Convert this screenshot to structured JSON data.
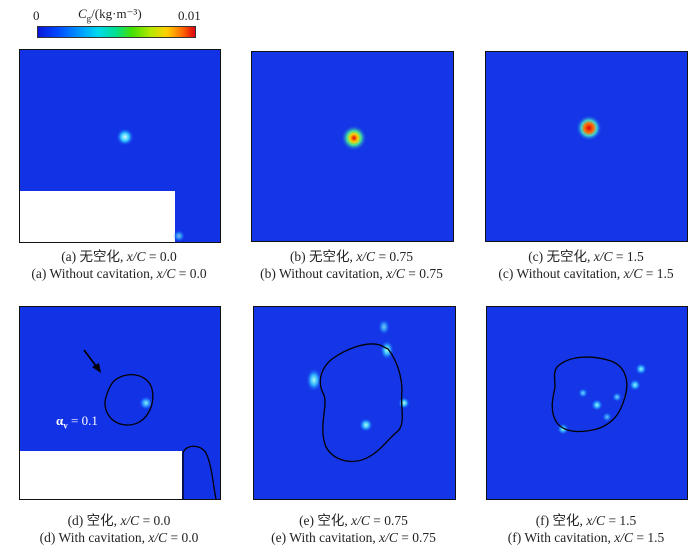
{
  "colorbar": {
    "min": "0",
    "max": "0.01",
    "title": "C",
    "title_sub": "g",
    "title_unit": "/(kg·m⁻³)",
    "colors": [
      "#0a18d8",
      "#0046ff",
      "#0090ff",
      "#00d8f0",
      "#00e08a",
      "#44e000",
      "#b8e800",
      "#ffd000",
      "#ff6a00",
      "#e00010"
    ]
  },
  "panels": [
    {
      "zh": "(a) 无空化,",
      "en": "(a) Without cavitation,",
      "xc": "x/C",
      "val": "= 0.0"
    },
    {
      "zh": "(b) 无空化,",
      "en": "(b) Without cavitation,",
      "xc": "x/C",
      "val": "= 0.75"
    },
    {
      "zh": "(c) 无空化,",
      "en": "(c) Without cavitation,",
      "xc": "x/C",
      "val": "= 1.5"
    },
    {
      "zh": "(d) 空化,",
      "en": "(d) With cavitation,",
      "xc": "x/C",
      "val": "= 0.0"
    },
    {
      "zh": "(e) 空化,",
      "en": "(e) With cavitation,",
      "xc": "x/C",
      "val": "= 0.75"
    },
    {
      "zh": "(f) 空化,",
      "en": "(f) With cavitation,",
      "xc": "x/C",
      "val": "= 1.5"
    }
  ],
  "annotation": {
    "alpha_symbol": "α",
    "alpha_sub": "v",
    "alpha_value": "= 0.1"
  }
}
